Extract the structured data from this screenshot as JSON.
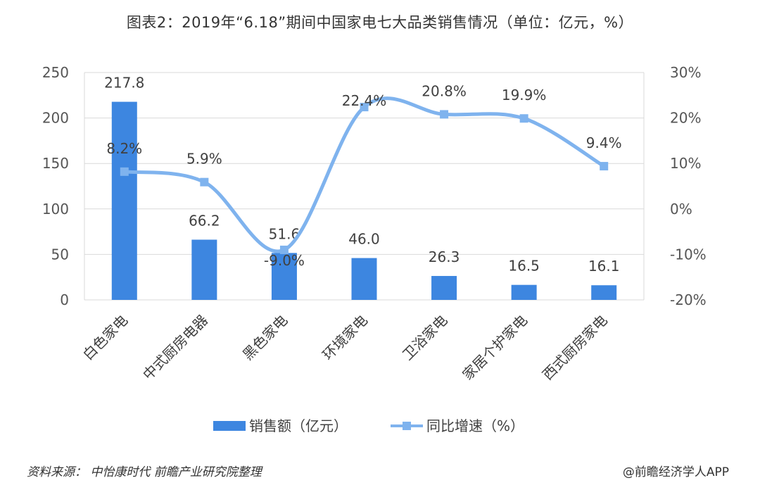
{
  "title": "图表2：2019年“6.18”期间中国家电七大品类销售情况（单位：亿元，%）",
  "source": "资料来源： 中怡康时代 前瞻产业研究院整理",
  "credit": "@前瞻经济学人APP",
  "chart_data": {
    "type": "bar+line",
    "categories": [
      "白色家电",
      "中式厨房电器",
      "黑色家电",
      "环境家电",
      "卫浴家电",
      "家居个护家电",
      "西式厨房家电"
    ],
    "series": [
      {
        "name": "销售额（亿元）",
        "type": "bar",
        "axis": "left",
        "values": [
          217.8,
          66.2,
          51.6,
          46.0,
          26.3,
          16.5,
          16.1
        ],
        "labels": [
          "217.8",
          "66.2",
          "51.6",
          "46.0",
          "26.3",
          "16.5",
          "16.1"
        ],
        "color": "#3d86e0"
      },
      {
        "name": "同比增速（%）",
        "type": "line",
        "axis": "right",
        "values": [
          8.2,
          5.9,
          -9.0,
          22.4,
          20.8,
          19.9,
          9.4
        ],
        "labels": [
          "8.2%",
          "5.9%",
          "-9.0%",
          "22.4%",
          "20.8%",
          "19.9%",
          "9.4%"
        ],
        "color": "#7fb3ee"
      }
    ],
    "y_left": {
      "min": 0,
      "max": 250,
      "ticks": [
        0,
        50,
        100,
        150,
        200,
        250
      ],
      "tick_labels": [
        "0",
        "50",
        "100",
        "150",
        "200",
        "250"
      ]
    },
    "y_right": {
      "min": -20,
      "max": 30,
      "ticks": [
        -20,
        -10,
        0,
        10,
        20,
        30
      ],
      "tick_labels": [
        "-20%",
        "-10%",
        "0%",
        "10%",
        "20%",
        "30%"
      ]
    },
    "grid": true,
    "legend_position": "bottom"
  }
}
